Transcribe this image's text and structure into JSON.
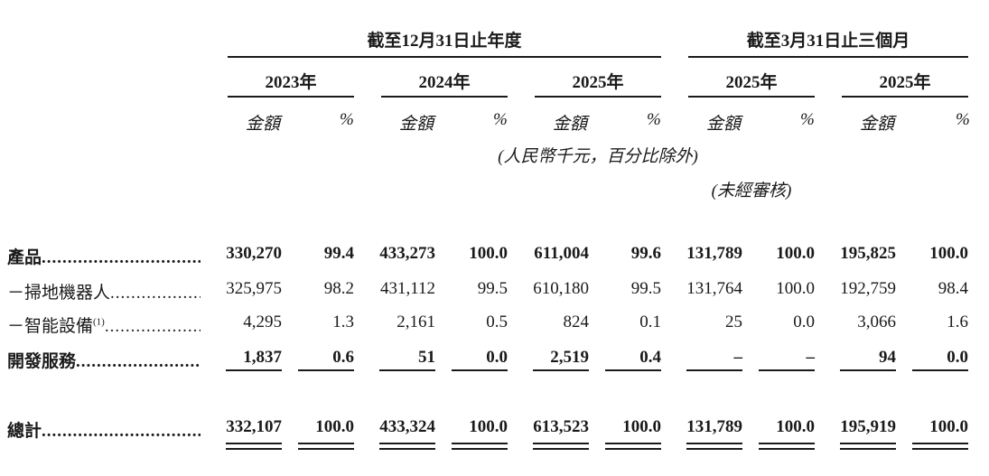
{
  "header": {
    "group1": "截至12月31日止年度",
    "group2": "截至3月31日止三個月",
    "years": [
      "2023年",
      "2024年",
      "2025年",
      "2025年",
      "2025年"
    ],
    "amount_label": "金額",
    "percent_label": "%",
    "unit_note": "(人民幣千元，百分比除外)",
    "unaudited_note": "(未經審核)"
  },
  "rows": [
    {
      "label": "產品",
      "bold": true,
      "values": [
        "330,270",
        "99.4",
        "433,273",
        "100.0",
        "611,004",
        "99.6",
        "131,789",
        "100.0",
        "195,825",
        "100.0"
      ]
    },
    {
      "label": "－掃地機器人",
      "bold": false,
      "values": [
        "325,975",
        "98.2",
        "431,112",
        "99.5",
        "610,180",
        "99.5",
        "131,764",
        "100.0",
        "192,759",
        "98.4"
      ]
    },
    {
      "label": "－智能設備",
      "sup": "(1)",
      "bold": false,
      "values": [
        "4,295",
        "1.3",
        "2,161",
        "0.5",
        "824",
        "0.1",
        "25",
        "0.0",
        "3,066",
        "1.6"
      ]
    },
    {
      "label": "開發服務",
      "bold": true,
      "values": [
        "1,837",
        "0.6",
        "51",
        "0.0",
        "2,519",
        "0.4",
        "–",
        "–",
        "94",
        "0.0"
      ]
    }
  ],
  "total": {
    "label": "總計",
    "values": [
      "332,107",
      "100.0",
      "433,324",
      "100.0",
      "613,523",
      "100.0",
      "131,789",
      "100.0",
      "195,919",
      "100.0"
    ]
  }
}
